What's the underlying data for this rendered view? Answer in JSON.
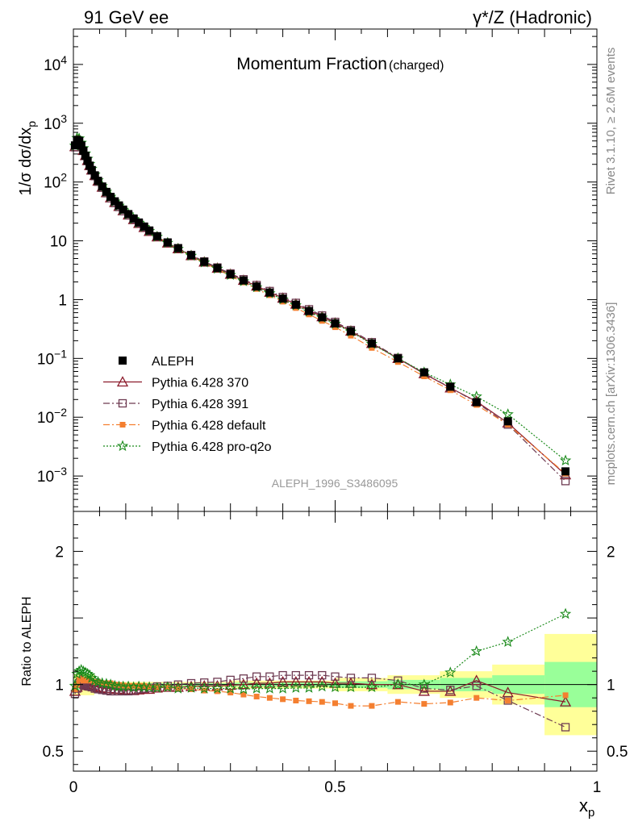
{
  "header": {
    "left": "91 GeV ee",
    "right": "γ*/Z (Hadronic)"
  },
  "side_labels": {
    "rivet": "Rivet 3.1.10, ≥ 2.6M events",
    "mcplots": "mcplots.cern.ch [arXiv:1306.3436]"
  },
  "colors": {
    "aleph": "#000000",
    "p370": "#8b1a2a",
    "p391": "#6e3b52",
    "default": "#f47f30",
    "proq2o": "#1a8a1a",
    "band_yellow": "#ffff99",
    "band_green": "#99ff99"
  },
  "chart_data": [
    {
      "type": "scatter",
      "title": "Momentum Fraction",
      "title_suffix": "(charged)",
      "ylabel": "1/σ dσ/dx",
      "ylabel_sub": "p",
      "watermark": "ALEPH_1996_S3486095",
      "yscale": "log",
      "ylim": [
        0.00025,
        40000
      ],
      "xlim": [
        0,
        1
      ],
      "y_tick_labels": [
        "10−3",
        "10−2",
        "10−1",
        "1",
        "10",
        "102",
        "103",
        "104"
      ],
      "legend_position": "lower-left",
      "x": [
        0.003,
        0.007,
        0.011,
        0.015,
        0.019,
        0.023,
        0.027,
        0.031,
        0.035,
        0.041,
        0.047,
        0.055,
        0.063,
        0.071,
        0.079,
        0.087,
        0.095,
        0.105,
        0.115,
        0.125,
        0.135,
        0.145,
        0.16,
        0.18,
        0.2,
        0.225,
        0.25,
        0.275,
        0.3,
        0.325,
        0.35,
        0.375,
        0.4,
        0.425,
        0.45,
        0.475,
        0.5,
        0.53,
        0.57,
        0.62,
        0.67,
        0.72,
        0.77,
        0.83,
        0.94
      ],
      "series": [
        {
          "name": "ALEPH",
          "marker": "square",
          "values": [
            420,
            520,
            500,
            420,
            340,
            280,
            230,
            190,
            160,
            130,
            105,
            84,
            68,
            56,
            47,
            40,
            34,
            28.5,
            24,
            20.5,
            17.5,
            15,
            12,
            9.4,
            7.5,
            5.7,
            4.4,
            3.45,
            2.7,
            2.12,
            1.67,
            1.32,
            1.04,
            0.82,
            0.64,
            0.5,
            0.395,
            0.29,
            0.18,
            0.1,
            0.058,
            0.033,
            0.018,
            0.0085,
            0.0012
          ]
        },
        {
          "name": "Pythia 6.428 370",
          "marker": "triangle-open",
          "values": [
            400,
            510,
            510,
            430,
            345,
            282,
            232,
            191,
            160,
            129,
            104,
            82,
            66,
            54,
            45,
            38.5,
            32.5,
            27.5,
            23,
            19.8,
            16.9,
            14.5,
            11.7,
            9.2,
            7.35,
            5.62,
            4.35,
            3.42,
            2.7,
            2.13,
            1.7,
            1.34,
            1.06,
            0.84,
            0.655,
            0.512,
            0.4,
            0.292,
            0.18,
            0.1,
            0.055,
            0.0315,
            0.0186,
            0.008,
            0.00105
          ]
        },
        {
          "name": "Pythia 6.428 391",
          "marker": "square-open",
          "values": [
            390,
            505,
            505,
            425,
            340,
            277,
            228,
            188,
            157,
            126,
            101,
            80,
            64.6,
            53,
            44,
            37.6,
            32,
            27.1,
            23,
            19.8,
            16.9,
            14.6,
            11.8,
            9.3,
            7.5,
            5.75,
            4.46,
            3.52,
            2.79,
            2.22,
            1.77,
            1.4,
            1.11,
            0.88,
            0.685,
            0.537,
            0.418,
            0.304,
            0.189,
            0.102,
            0.056,
            0.0318,
            0.0179,
            0.0075,
            0.00082
          ]
        },
        {
          "name": "Pythia 6.428 default",
          "marker": "square-filled",
          "values": [
            405,
            520,
            520,
            436,
            350,
            289,
            238,
            196,
            165,
            133,
            107,
            85,
            69,
            56.5,
            47,
            39.9,
            33.8,
            28.3,
            23.8,
            20.3,
            17.3,
            14.7,
            11.8,
            9.2,
            7.28,
            5.5,
            4.2,
            3.27,
            2.53,
            1.96,
            1.52,
            1.19,
            0.925,
            0.72,
            0.56,
            0.435,
            0.34,
            0.244,
            0.151,
            0.087,
            0.0496,
            0.0288,
            0.0162,
            0.0075,
            0.0011
          ]
        },
        {
          "name": "Pythia 6.428 pro-q2o",
          "marker": "star",
          "values": [
            415,
            560,
            550,
            465,
            375,
            305,
            248,
            203,
            168,
            134,
            107,
            85,
            68.4,
            56,
            46.5,
            39.5,
            33.5,
            28.1,
            23.5,
            20.2,
            17.2,
            14.7,
            11.7,
            9.2,
            7.3,
            5.55,
            4.27,
            3.35,
            2.62,
            2.05,
            1.62,
            1.28,
            1.01,
            0.8,
            0.625,
            0.492,
            0.387,
            0.285,
            0.176,
            0.1,
            0.058,
            0.036,
            0.0225,
            0.0112,
            0.00183
          ]
        }
      ]
    },
    {
      "type": "scatter",
      "ylabel": "Ratio to ALEPH",
      "xlabel": "x",
      "xlabel_sub": "p",
      "ylim": [
        0.35,
        2.3
      ],
      "xlim": [
        0,
        1
      ],
      "x_ticks": [
        "0",
        "0.5",
        "1"
      ],
      "y_ticks": [
        "0.5",
        "1",
        "2"
      ],
      "bands": {
        "edges": [
          0,
          0.04,
          0.3,
          0.5,
          0.6,
          0.7,
          0.8,
          0.9,
          1.0
        ],
        "yellow": [
          0.08,
          0.02,
          0.03,
          0.05,
          0.07,
          0.1,
          0.15,
          0.38
        ],
        "green": [
          0.04,
          0.01,
          0.015,
          0.025,
          0.035,
          0.05,
          0.07,
          0.17
        ]
      },
      "x": [
        0.003,
        0.007,
        0.011,
        0.015,
        0.019,
        0.023,
        0.027,
        0.031,
        0.035,
        0.041,
        0.047,
        0.055,
        0.063,
        0.071,
        0.079,
        0.087,
        0.095,
        0.105,
        0.115,
        0.125,
        0.135,
        0.145,
        0.16,
        0.18,
        0.2,
        0.225,
        0.25,
        0.275,
        0.3,
        0.325,
        0.35,
        0.375,
        0.4,
        0.425,
        0.45,
        0.475,
        0.5,
        0.53,
        0.57,
        0.62,
        0.67,
        0.72,
        0.77,
        0.83,
        0.94
      ],
      "series": [
        {
          "name": "Pythia 6.428 370",
          "values": [
            0.95,
            0.98,
            1.02,
            1.03,
            1.01,
            1.0,
            0.995,
            0.99,
            0.99,
            0.985,
            0.98,
            0.975,
            0.97,
            0.97,
            0.965,
            0.965,
            0.96,
            0.96,
            0.955,
            0.96,
            0.965,
            0.965,
            0.975,
            0.98,
            0.98,
            0.985,
            0.99,
            0.99,
            0.995,
            1.0,
            1.01,
            1.01,
            1.02,
            1.02,
            1.02,
            1.02,
            1.01,
            1.01,
            1.0,
            1.0,
            0.95,
            0.95,
            1.03,
            0.94,
            0.87
          ]
        },
        {
          "name": "Pythia 6.428 391",
          "values": [
            0.93,
            0.97,
            1.01,
            1.01,
            1.0,
            0.99,
            0.99,
            0.985,
            0.98,
            0.97,
            0.965,
            0.96,
            0.955,
            0.95,
            0.95,
            0.95,
            0.95,
            0.95,
            0.955,
            0.965,
            0.97,
            0.975,
            0.985,
            0.99,
            1.0,
            1.01,
            1.015,
            1.02,
            1.035,
            1.045,
            1.06,
            1.06,
            1.07,
            1.07,
            1.07,
            1.07,
            1.06,
            1.05,
            1.05,
            1.03,
            0.97,
            0.96,
            0.99,
            0.88,
            0.68
          ]
        },
        {
          "name": "Pythia 6.428 default",
          "values": [
            0.965,
            1.0,
            1.04,
            1.04,
            1.03,
            1.03,
            1.035,
            1.03,
            1.03,
            1.02,
            1.02,
            1.01,
            1.01,
            1.01,
            1.0,
            0.997,
            0.993,
            0.99,
            0.99,
            0.99,
            0.99,
            0.98,
            0.98,
            0.98,
            0.97,
            0.965,
            0.955,
            0.95,
            0.94,
            0.925,
            0.91,
            0.9,
            0.89,
            0.88,
            0.875,
            0.87,
            0.86,
            0.84,
            0.84,
            0.87,
            0.855,
            0.865,
            0.9,
            0.88,
            0.92
          ]
        },
        {
          "name": "Pythia 6.428 pro-q2o",
          "values": [
            0.99,
            1.08,
            1.1,
            1.11,
            1.1,
            1.09,
            1.08,
            1.07,
            1.05,
            1.03,
            1.02,
            1.01,
            1.005,
            1.0,
            0.99,
            0.985,
            0.985,
            0.985,
            0.98,
            0.985,
            0.98,
            0.98,
            0.975,
            0.98,
            0.97,
            0.975,
            0.97,
            0.97,
            0.97,
            0.965,
            0.97,
            0.97,
            0.97,
            0.975,
            0.975,
            0.985,
            0.98,
            0.98,
            0.98,
            1.0,
            1.0,
            1.09,
            1.25,
            1.32,
            1.53
          ]
        }
      ]
    }
  ]
}
